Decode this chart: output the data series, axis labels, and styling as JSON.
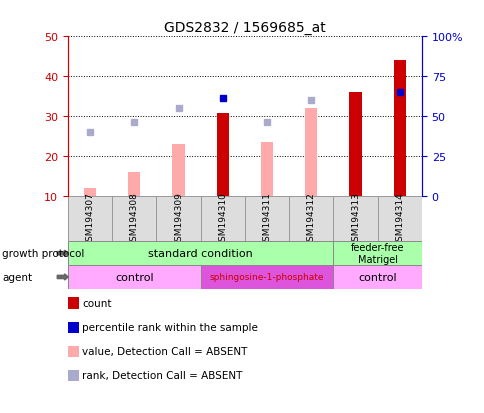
{
  "title": "GDS2832 / 1569685_at",
  "samples": [
    "GSM194307",
    "GSM194308",
    "GSM194309",
    "GSM194310",
    "GSM194311",
    "GSM194312",
    "GSM194313",
    "GSM194314"
  ],
  "count_values": [
    null,
    null,
    null,
    30.8,
    null,
    null,
    36.0,
    44.0
  ],
  "value_absent": [
    12.0,
    16.0,
    23.0,
    null,
    23.5,
    32.0,
    null,
    null
  ],
  "rank_absent": [
    26.0,
    28.5,
    32.0,
    null,
    28.5,
    34.0,
    null,
    null
  ],
  "percentile_rank": [
    null,
    null,
    null,
    34.5,
    null,
    null,
    null,
    36.0
  ],
  "ylim_left": [
    10,
    50
  ],
  "ylim_right": [
    0,
    100
  ],
  "yticks_left": [
    10,
    20,
    30,
    40,
    50
  ],
  "yticks_right": [
    0,
    25,
    50,
    75,
    100
  ],
  "yticklabels_right": [
    "0",
    "25",
    "50",
    "75",
    "100%"
  ],
  "color_count": "#cc0000",
  "color_percentile": "#0000cc",
  "color_value_absent": "#ffaaaa",
  "color_rank_absent": "#aaaacc",
  "color_gp": "#aaffaa",
  "color_agent_control": "#ffaaff",
  "color_agent_sphingo": "#dd55dd",
  "color_sphingo_text": "#cc0000",
  "legend_items": [
    {
      "color": "#cc0000",
      "label": "count"
    },
    {
      "color": "#0000cc",
      "label": "percentile rank within the sample"
    },
    {
      "color": "#ffaaaa",
      "label": "value, Detection Call = ABSENT"
    },
    {
      "color": "#aaaacc",
      "label": "rank, Detection Call = ABSENT"
    }
  ],
  "figsize": [
    4.85,
    4.14
  ],
  "dpi": 100
}
